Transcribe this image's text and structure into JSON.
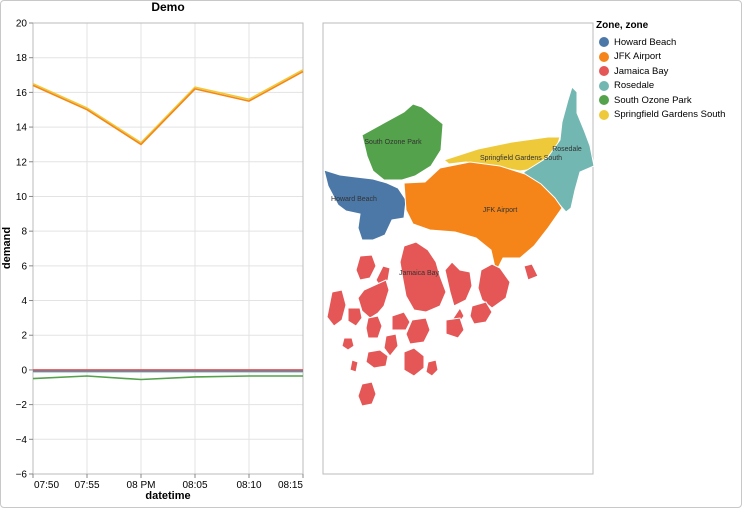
{
  "chart_data": [
    {
      "type": "line",
      "title": "Demo",
      "xlabel": "datetime",
      "ylabel": "demand",
      "x_ticks": [
        "07:50",
        "07:55",
        "08 PM",
        "08:05",
        "08:10",
        "08:15"
      ],
      "y_ticks": [
        "−6",
        "−4",
        "−2",
        "0",
        "2",
        "4",
        "6",
        "8",
        "10",
        "12",
        "14",
        "16",
        "18",
        "20"
      ],
      "ylim": [
        -6,
        20
      ],
      "grid": true,
      "series": [
        {
          "name": "JFK Airport",
          "color": "#f58518",
          "values": [
            16.4,
            15.0,
            13.0,
            16.2,
            15.5,
            17.2
          ]
        },
        {
          "name": "Springfield Gardens South",
          "color": "#eeca3b",
          "values": [
            16.5,
            15.1,
            13.1,
            16.3,
            15.6,
            17.3
          ]
        },
        {
          "name": "South Ozone Park",
          "color": "#54a24b",
          "values": [
            -0.5,
            -0.35,
            -0.55,
            -0.4,
            -0.35,
            -0.35
          ]
        },
        {
          "name": "Howard Beach",
          "color": "#4c78a8",
          "values": [
            -0.05,
            -0.05,
            -0.05,
            -0.05,
            -0.05,
            -0.05
          ]
        },
        {
          "name": "Jamaica Bay",
          "color": "#e45756",
          "values": [
            0.0,
            0.0,
            0.0,
            0.0,
            0.0,
            0.0
          ]
        },
        {
          "name": "Rosedale",
          "color": "#72b7b2",
          "values": [
            -0.1,
            -0.1,
            -0.1,
            -0.1,
            -0.1,
            -0.1
          ]
        }
      ]
    },
    {
      "type": "map",
      "zone_labels": [
        "South Ozone Park",
        "Springfield Gardens South",
        "Rosedale",
        "Howard Beach",
        "JFK Airport",
        "Jamaica Bay"
      ]
    }
  ],
  "legend": {
    "title": "Zone, zone",
    "items": [
      {
        "label": "Howard Beach",
        "color": "#4c78a8"
      },
      {
        "label": "JFK Airport",
        "color": "#f58518"
      },
      {
        "label": "Jamaica Bay",
        "color": "#e45756"
      },
      {
        "label": "Rosedale",
        "color": "#72b7b2"
      },
      {
        "label": "South Ozone Park",
        "color": "#54a24b"
      },
      {
        "label": "Springfield Gardens South",
        "color": "#eeca3b"
      }
    ]
  }
}
